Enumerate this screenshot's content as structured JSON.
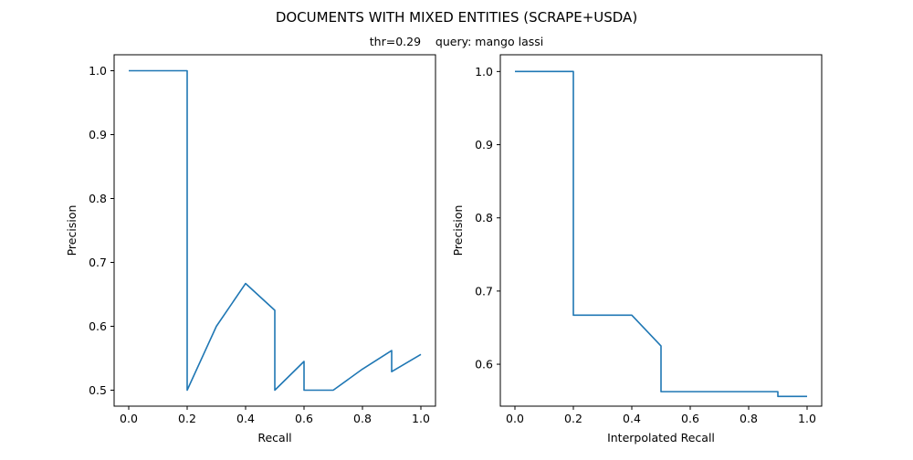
{
  "figure": {
    "title": "DOCUMENTS WITH MIXED ENTITIES (SCRAPE+USDA)",
    "subtitle": "thr=0.29    query: mango lassi"
  },
  "chart_data": [
    {
      "type": "line",
      "xlabel": "Recall",
      "ylabel": "Precision",
      "xlim": [
        -0.05,
        1.05
      ],
      "ylim": [
        0.475,
        1.025
      ],
      "xticks": [
        "0.0",
        "0.2",
        "0.4",
        "0.6",
        "0.8",
        "1.0"
      ],
      "yticks": [
        "0.5",
        "0.6",
        "0.7",
        "0.8",
        "0.9",
        "1.0"
      ],
      "grid": false,
      "series": [
        {
          "color": "#1f77b4",
          "x": [
            0.0,
            0.1,
            0.2,
            0.2,
            0.3,
            0.4,
            0.5,
            0.5,
            0.6,
            0.6,
            0.7,
            0.8,
            0.9,
            0.9,
            1.0
          ],
          "y": [
            1.0,
            1.0,
            1.0,
            0.5,
            0.6,
            0.667,
            0.625,
            0.5,
            0.545,
            0.5,
            0.5,
            0.533,
            0.562,
            0.529,
            0.556
          ]
        }
      ]
    },
    {
      "type": "line",
      "xlabel": "Interpolated Recall",
      "ylabel": "Precision",
      "xlim": [
        -0.05,
        1.05
      ],
      "ylim": [
        0.5427,
        1.0229
      ],
      "xticks": [
        "0.0",
        "0.2",
        "0.4",
        "0.6",
        "0.8",
        "1.0"
      ],
      "yticks": [
        "0.6",
        "0.7",
        "0.8",
        "0.9",
        "1.0"
      ],
      "grid": false,
      "series": [
        {
          "color": "#1f77b4",
          "x": [
            0.0,
            0.2,
            0.2,
            0.4,
            0.5,
            0.5,
            0.9,
            0.9,
            1.0
          ],
          "y": [
            1.0,
            1.0,
            0.667,
            0.667,
            0.625,
            0.5625,
            0.5625,
            0.556,
            0.556
          ]
        }
      ]
    }
  ]
}
